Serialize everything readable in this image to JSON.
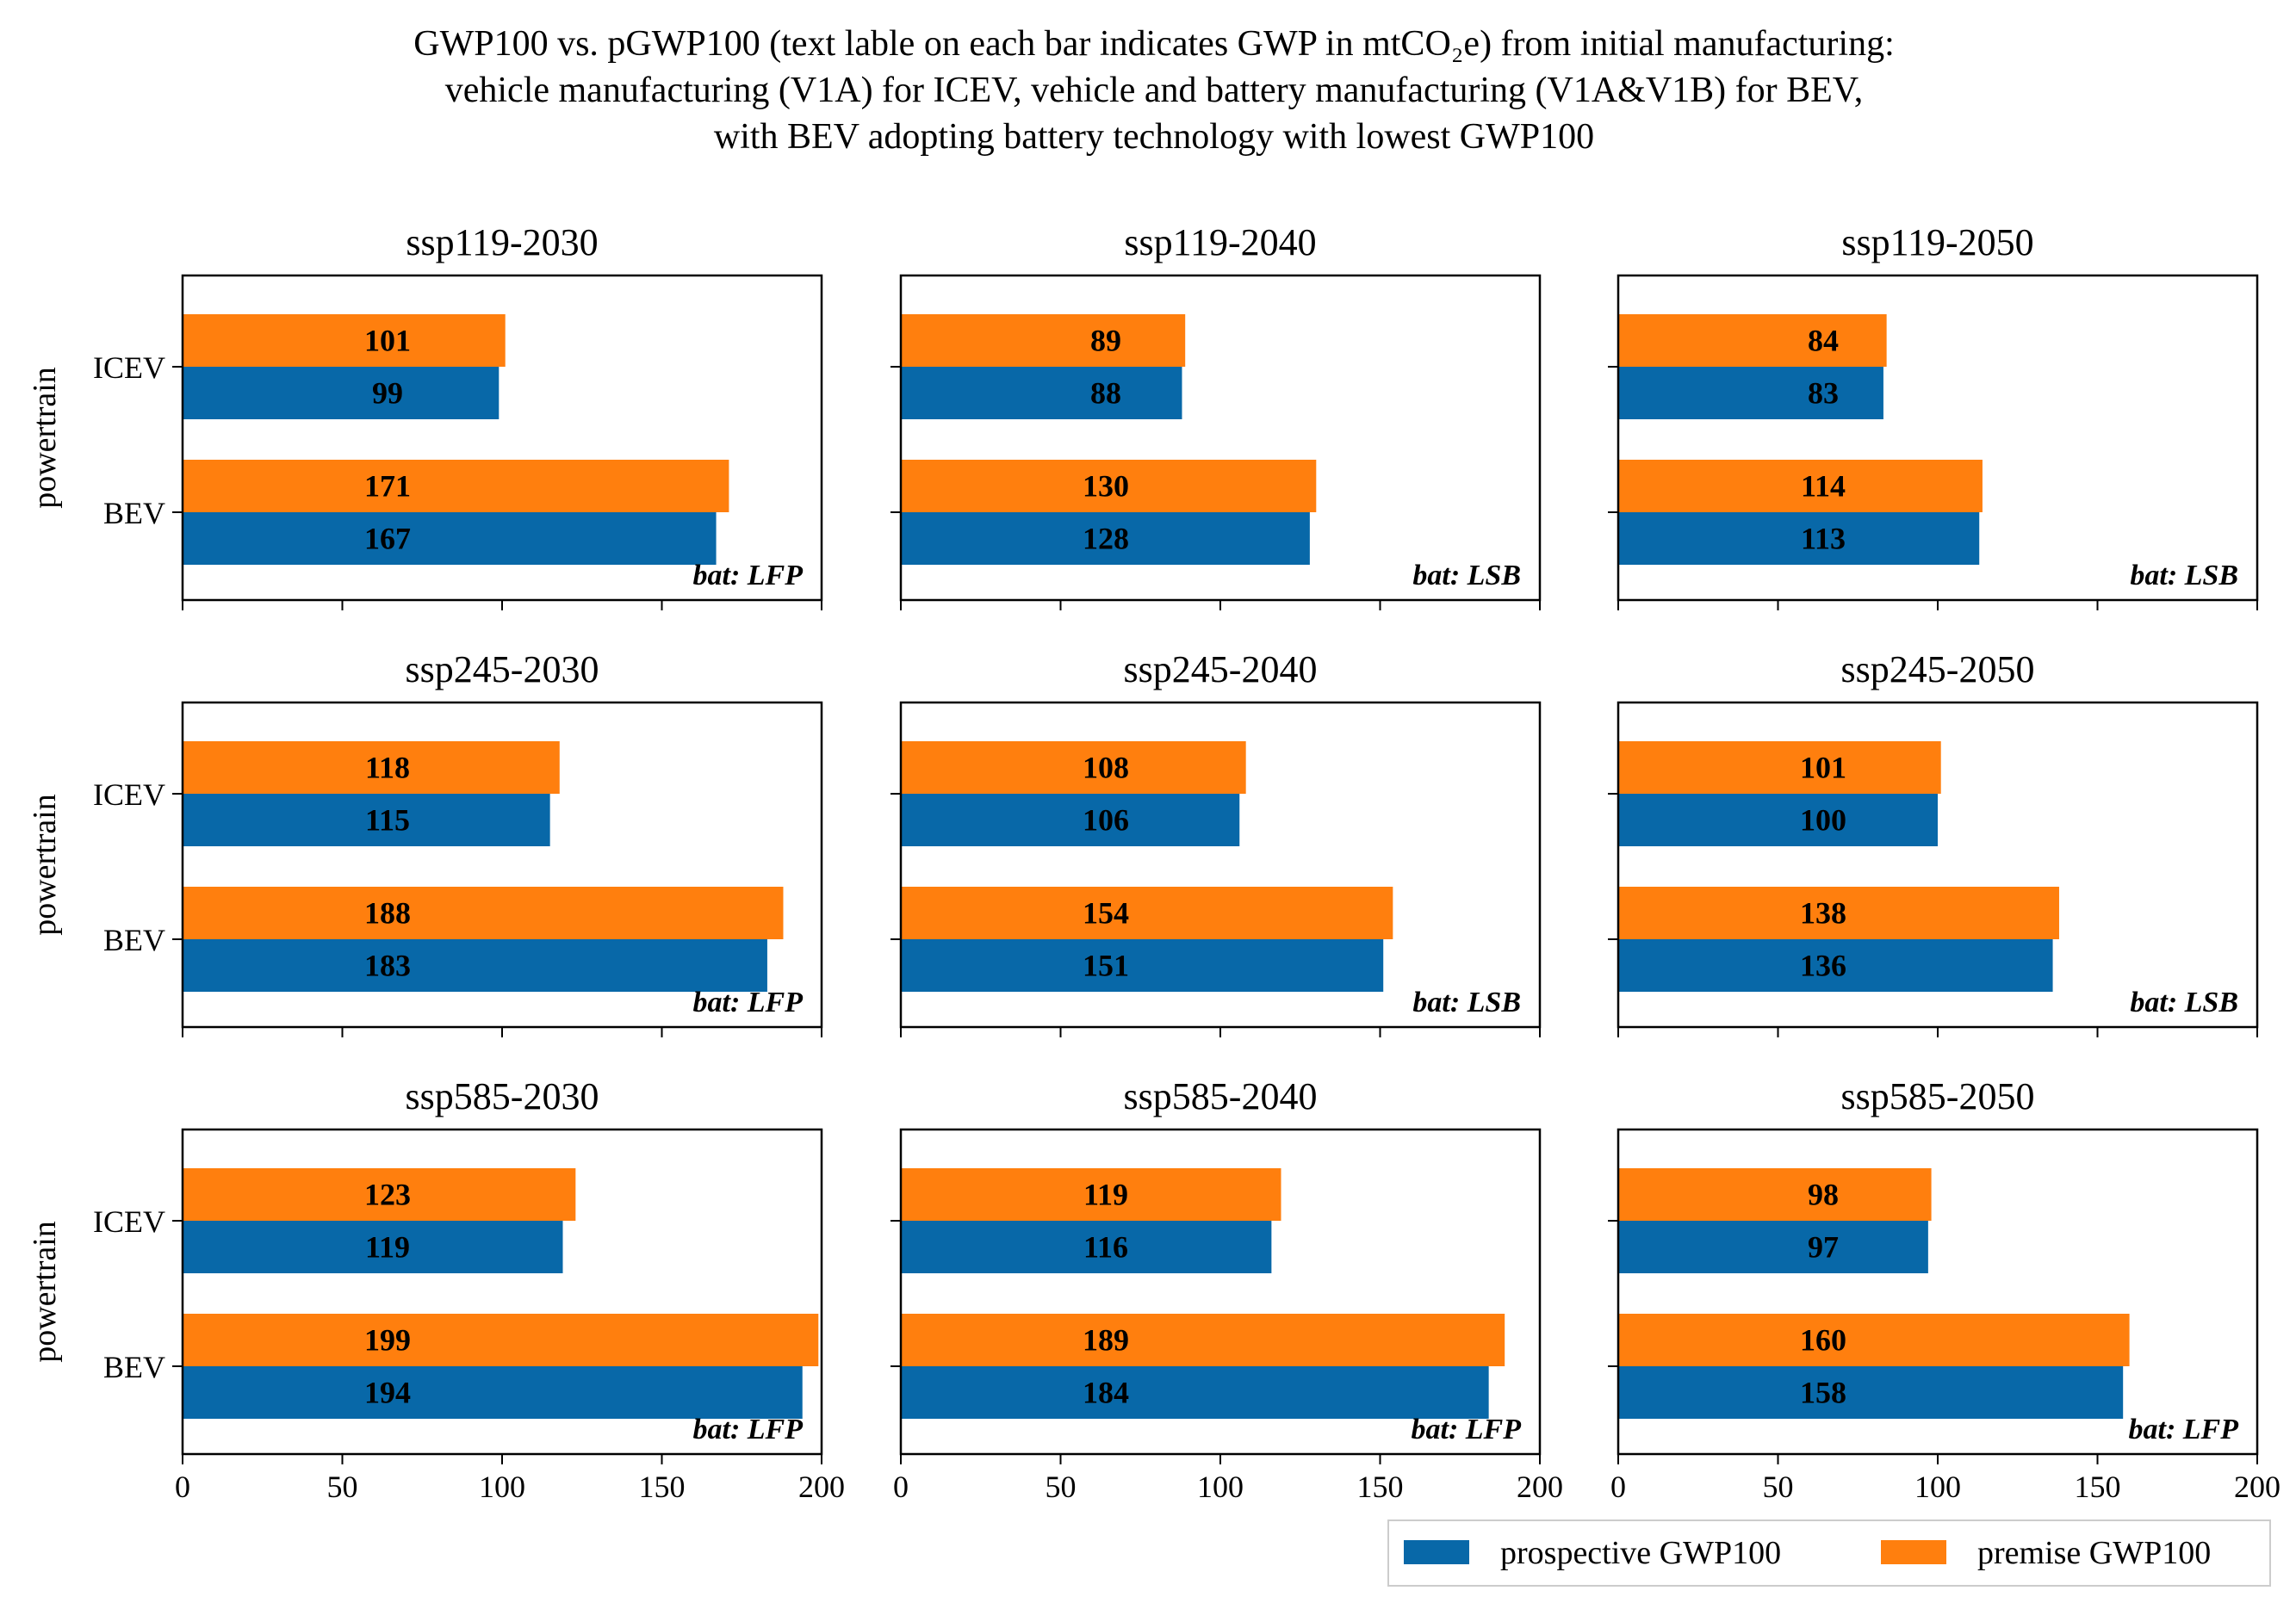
{
  "figure": {
    "title_lines": [
      "GWP100 vs. pGWP100 (text lable on each bar indicates GWP in mtCO₂e) from initial manufacturing:",
      "vehicle manufacturing (V1A) for ICEV, vehicle and battery manufacturing (V1A&V1B) for BEV,",
      "with BEV adopting battery technology with lowest GWP100"
    ]
  },
  "legend": {
    "placement": "bottom-right",
    "entries": [
      {
        "label": "prospective GWP100",
        "color": "#0868a8"
      },
      {
        "label": "premise GWP100",
        "color": "#ff7f0e"
      }
    ]
  },
  "chart_data": [
    {
      "type": "bar",
      "orientation": "horizontal",
      "title": "ssp119-2030",
      "ylabel": "powertrain",
      "categories": [
        "ICEV",
        "BEV"
      ],
      "xlim": [
        0,
        200
      ],
      "xticks": [
        "0",
        "50",
        "100",
        "150",
        "200"
      ],
      "series": [
        {
          "name": "prospective GWP100",
          "values": [
            99,
            167
          ]
        },
        {
          "name": "premise GWP100",
          "values": [
            101,
            171
          ]
        }
      ],
      "annotation": "bat: LFP"
    },
    {
      "type": "bar",
      "orientation": "horizontal",
      "title": "ssp119-2040",
      "ylabel": "",
      "categories": [
        "ICEV",
        "BEV"
      ],
      "xlim": [
        0,
        200
      ],
      "xticks": [
        "0",
        "50",
        "100",
        "150",
        "200"
      ],
      "series": [
        {
          "name": "prospective GWP100",
          "values": [
            88,
            128
          ]
        },
        {
          "name": "premise GWP100",
          "values": [
            89,
            130
          ]
        }
      ],
      "annotation": "bat: LSB"
    },
    {
      "type": "bar",
      "orientation": "horizontal",
      "title": "ssp119-2050",
      "ylabel": "",
      "categories": [
        "ICEV",
        "BEV"
      ],
      "xlim": [
        0,
        200
      ],
      "xticks": [
        "0",
        "50",
        "100",
        "150",
        "200"
      ],
      "series": [
        {
          "name": "prospective GWP100",
          "values": [
            83,
            113
          ]
        },
        {
          "name": "premise GWP100",
          "values": [
            84,
            114
          ]
        }
      ],
      "annotation": "bat: LSB"
    },
    {
      "type": "bar",
      "orientation": "horizontal",
      "title": "ssp245-2030",
      "ylabel": "powertrain",
      "categories": [
        "ICEV",
        "BEV"
      ],
      "xlim": [
        0,
        200
      ],
      "xticks": [
        "0",
        "50",
        "100",
        "150",
        "200"
      ],
      "series": [
        {
          "name": "prospective GWP100",
          "values": [
            115,
            183
          ]
        },
        {
          "name": "premise GWP100",
          "values": [
            118,
            188
          ]
        }
      ],
      "annotation": "bat: LFP"
    },
    {
      "type": "bar",
      "orientation": "horizontal",
      "title": "ssp245-2040",
      "ylabel": "",
      "categories": [
        "ICEV",
        "BEV"
      ],
      "xlim": [
        0,
        200
      ],
      "xticks": [
        "0",
        "50",
        "100",
        "150",
        "200"
      ],
      "series": [
        {
          "name": "prospective GWP100",
          "values": [
            106,
            151
          ]
        },
        {
          "name": "premise GWP100",
          "values": [
            108,
            154
          ]
        }
      ],
      "annotation": "bat: LSB"
    },
    {
      "type": "bar",
      "orientation": "horizontal",
      "title": "ssp245-2050",
      "ylabel": "",
      "categories": [
        "ICEV",
        "BEV"
      ],
      "xlim": [
        0,
        200
      ],
      "xticks": [
        "0",
        "50",
        "100",
        "150",
        "200"
      ],
      "series": [
        {
          "name": "prospective GWP100",
          "values": [
            100,
            136
          ]
        },
        {
          "name": "premise GWP100",
          "values": [
            101,
            138
          ]
        }
      ],
      "annotation": "bat: LSB"
    },
    {
      "type": "bar",
      "orientation": "horizontal",
      "title": "ssp585-2030",
      "ylabel": "powertrain",
      "categories": [
        "ICEV",
        "BEV"
      ],
      "xlim": [
        0,
        200
      ],
      "xticks": [
        "0",
        "50",
        "100",
        "150",
        "200"
      ],
      "series": [
        {
          "name": "prospective GWP100",
          "values": [
            119,
            194
          ]
        },
        {
          "name": "premise GWP100",
          "values": [
            123,
            199
          ]
        }
      ],
      "annotation": "bat: LFP"
    },
    {
      "type": "bar",
      "orientation": "horizontal",
      "title": "ssp585-2040",
      "ylabel": "",
      "categories": [
        "ICEV",
        "BEV"
      ],
      "xlim": [
        0,
        200
      ],
      "xticks": [
        "0",
        "50",
        "100",
        "150",
        "200"
      ],
      "series": [
        {
          "name": "prospective GWP100",
          "values": [
            116,
            184
          ]
        },
        {
          "name": "premise GWP100",
          "values": [
            119,
            189
          ]
        }
      ],
      "annotation": "bat: LFP"
    },
    {
      "type": "bar",
      "orientation": "horizontal",
      "title": "ssp585-2050",
      "ylabel": "",
      "categories": [
        "ICEV",
        "BEV"
      ],
      "xlim": [
        0,
        200
      ],
      "xticks": [
        "0",
        "50",
        "100",
        "150",
        "200"
      ],
      "series": [
        {
          "name": "prospective GWP100",
          "values": [
            97,
            158
          ]
        },
        {
          "name": "premise GWP100",
          "values": [
            98,
            160
          ]
        }
      ],
      "annotation": "bat: LFP"
    }
  ]
}
